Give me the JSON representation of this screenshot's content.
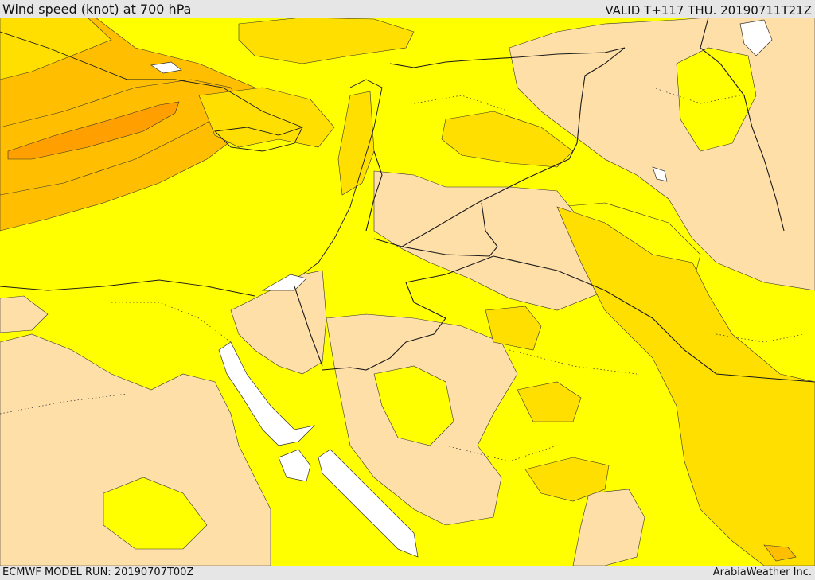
{
  "header": {
    "title": "Wind speed (knot) at 700 hPa",
    "valid": "VALID T+117 THU. 20190711T21Z"
  },
  "footer": {
    "model_run": "ECMWF MODEL RUN: 20190707T00Z",
    "credit": "ArabiaWeather Inc."
  },
  "map": {
    "colors": {
      "calm": "#ffdfa8",
      "light": "#ffff00",
      "moderate": "#ffdf00",
      "fresh": "#ffbf00",
      "strong": "#ff9f00",
      "water": "#ffffff",
      "boundary": "#1a1a1a"
    }
  }
}
